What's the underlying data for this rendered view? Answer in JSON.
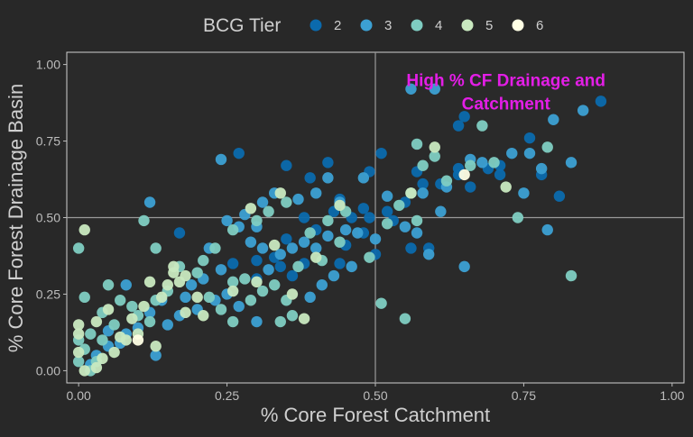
{
  "chart_data": {
    "type": "scatter",
    "xlabel": "% Core Forest Catchment",
    "ylabel": "% Core Forest Drainage Basin",
    "xlim": [
      -0.02,
      1.02
    ],
    "ylim": [
      -0.04,
      1.04
    ],
    "x_ticks": [
      "0.00",
      "0.25",
      "0.50",
      "0.75",
      "1.00"
    ],
    "x_tick_values": [
      0,
      0.25,
      0.5,
      0.75,
      1.0
    ],
    "y_ticks": [
      "0.00",
      "0.25",
      "0.50",
      "0.75",
      "1.00"
    ],
    "y_tick_values": [
      0,
      0.25,
      0.5,
      0.75,
      1.0
    ],
    "grid": false,
    "reference_lines": {
      "x": 0.5,
      "y": 0.5
    },
    "annotation": {
      "lines": [
        "High % CF Drainage and",
        "Catchment"
      ],
      "x": 0.72,
      "y": 0.95,
      "color": "#e31ee6"
    },
    "legend": {
      "title": "BCG Tier",
      "placement": "top"
    },
    "series": [
      {
        "name": "2",
        "color": "#0b6aad",
        "points": [
          [
            0.88,
            0.88
          ],
          [
            0.65,
            0.83
          ],
          [
            0.64,
            0.8
          ],
          [
            0.76,
            0.76
          ],
          [
            0.27,
            0.71
          ],
          [
            0.51,
            0.71
          ],
          [
            0.64,
            0.66
          ],
          [
            0.69,
            0.66
          ],
          [
            0.71,
            0.64
          ],
          [
            0.35,
            0.67
          ],
          [
            0.39,
            0.63
          ],
          [
            0.42,
            0.68
          ],
          [
            0.49,
            0.65
          ],
          [
            0.57,
            0.65
          ],
          [
            0.58,
            0.61
          ],
          [
            0.61,
            0.61
          ],
          [
            0.66,
            0.6
          ],
          [
            0.78,
            0.64
          ],
          [
            0.81,
            0.57
          ],
          [
            0.44,
            0.56
          ],
          [
            0.55,
            0.55
          ],
          [
            0.52,
            0.52
          ],
          [
            0.46,
            0.5
          ],
          [
            0.43,
            0.52
          ],
          [
            0.49,
            0.5
          ],
          [
            0.38,
            0.5
          ],
          [
            0.4,
            0.46
          ],
          [
            0.35,
            0.43
          ],
          [
            0.45,
            0.41
          ],
          [
            0.48,
            0.45
          ],
          [
            0.5,
            0.38
          ],
          [
            0.56,
            0.4
          ],
          [
            0.59,
            0.4
          ],
          [
            0.33,
            0.37
          ],
          [
            0.3,
            0.36
          ],
          [
            0.38,
            0.35
          ],
          [
            0.17,
            0.45
          ],
          [
            0.44,
            0.35
          ],
          [
            0.26,
            0.35
          ],
          [
            0.3,
            0.3
          ],
          [
            0.34,
            0.34
          ],
          [
            0.36,
            0.31
          ],
          [
            0.48,
            0.53
          ],
          [
            0.53,
            0.49
          ],
          [
            0.71,
            0.67
          ],
          [
            0.64,
            0.64
          ]
        ]
      },
      {
        "name": "3",
        "color": "#3ca0d3",
        "points": [
          [
            0.56,
            0.92
          ],
          [
            0.6,
            0.92
          ],
          [
            0.85,
            0.85
          ],
          [
            0.8,
            0.82
          ],
          [
            0.78,
            0.66
          ],
          [
            0.83,
            0.68
          ],
          [
            0.75,
            0.58
          ],
          [
            0.79,
            0.46
          ],
          [
            0.62,
            0.6
          ],
          [
            0.58,
            0.58
          ],
          [
            0.65,
            0.34
          ],
          [
            0.59,
            0.38
          ],
          [
            0.55,
            0.47
          ],
          [
            0.61,
            0.52
          ],
          [
            0.52,
            0.57
          ],
          [
            0.48,
            0.63
          ],
          [
            0.42,
            0.63
          ],
          [
            0.4,
            0.58
          ],
          [
            0.37,
            0.56
          ],
          [
            0.33,
            0.58
          ],
          [
            0.31,
            0.55
          ],
          [
            0.24,
            0.69
          ],
          [
            0.3,
            0.47
          ],
          [
            0.28,
            0.51
          ],
          [
            0.25,
            0.49
          ],
          [
            0.27,
            0.47
          ],
          [
            0.29,
            0.42
          ],
          [
            0.31,
            0.4
          ],
          [
            0.32,
            0.33
          ],
          [
            0.34,
            0.38
          ],
          [
            0.36,
            0.4
          ],
          [
            0.38,
            0.42
          ],
          [
            0.4,
            0.4
          ],
          [
            0.42,
            0.44
          ],
          [
            0.45,
            0.46
          ],
          [
            0.47,
            0.45
          ],
          [
            0.5,
            0.43
          ],
          [
            0.22,
            0.4
          ],
          [
            0.24,
            0.33
          ],
          [
            0.21,
            0.3
          ],
          [
            0.19,
            0.28
          ],
          [
            0.18,
            0.24
          ],
          [
            0.2,
            0.2
          ],
          [
            0.23,
            0.23
          ],
          [
            0.25,
            0.25
          ],
          [
            0.27,
            0.21
          ],
          [
            0.3,
            0.16
          ],
          [
            0.12,
            0.55
          ],
          [
            0.14,
            0.23
          ],
          [
            0.12,
            0.19
          ],
          [
            0.1,
            0.14
          ],
          [
            0.08,
            0.12
          ],
          [
            0.07,
            0.09
          ],
          [
            0.05,
            0.08
          ],
          [
            0.03,
            0.05
          ],
          [
            0.02,
            0.02
          ],
          [
            0.08,
            0.28
          ],
          [
            0.05,
            0.13
          ],
          [
            0.15,
            0.15
          ],
          [
            0.17,
            0.18
          ],
          [
            0.13,
            0.05
          ],
          [
            0.39,
            0.24
          ],
          [
            0.43,
            0.31
          ],
          [
            0.41,
            0.28
          ],
          [
            0.46,
            0.34
          ],
          [
            0.44,
            0.55
          ],
          [
            0.57,
            0.45
          ],
          [
            0.68,
            0.68
          ],
          [
            0.73,
            0.71
          ],
          [
            0.76,
            0.71
          ],
          [
            0.66,
            0.69
          ]
        ]
      },
      {
        "name": "4",
        "color": "#7fcdc2",
        "points": [
          [
            0.57,
            0.74
          ],
          [
            0.68,
            0.8
          ],
          [
            0.6,
            0.7
          ],
          [
            0.58,
            0.67
          ],
          [
            0.66,
            0.67
          ],
          [
            0.79,
            0.73
          ],
          [
            0.74,
            0.5
          ],
          [
            0.83,
            0.31
          ],
          [
            0.56,
            0.58
          ],
          [
            0.52,
            0.48
          ],
          [
            0.51,
            0.22
          ],
          [
            0.55,
            0.17
          ],
          [
            0.57,
            0.49
          ],
          [
            0.45,
            0.52
          ],
          [
            0.42,
            0.49
          ],
          [
            0.35,
            0.55
          ],
          [
            0.32,
            0.52
          ],
          [
            0.3,
            0.49
          ],
          [
            0.26,
            0.46
          ],
          [
            0.23,
            0.4
          ],
          [
            0.21,
            0.36
          ],
          [
            0.2,
            0.32
          ],
          [
            0.22,
            0.24
          ],
          [
            0.24,
            0.2
          ],
          [
            0.26,
            0.16
          ],
          [
            0.29,
            0.23
          ],
          [
            0.34,
            0.16
          ],
          [
            0.36,
            0.18
          ],
          [
            0.35,
            0.23
          ],
          [
            0.37,
            0.34
          ],
          [
            0.33,
            0.28
          ],
          [
            0.31,
            0.26
          ],
          [
            0.28,
            0.3
          ],
          [
            0.26,
            0.29
          ],
          [
            0.17,
            0.34
          ],
          [
            0.15,
            0.26
          ],
          [
            0.13,
            0.23
          ],
          [
            0.12,
            0.16
          ],
          [
            0.1,
            0.18
          ],
          [
            0.09,
            0.21
          ],
          [
            0.07,
            0.23
          ],
          [
            0.04,
            0.19
          ],
          [
            0.02,
            0.12
          ],
          [
            0.01,
            0.07
          ],
          [
            0.0,
            0.1
          ],
          [
            0.0,
            0.03
          ],
          [
            0.01,
            0.24
          ],
          [
            0.0,
            0.4
          ],
          [
            0.11,
            0.49
          ],
          [
            0.13,
            0.4
          ],
          [
            0.05,
            0.28
          ],
          [
            0.06,
            0.15
          ],
          [
            0.04,
            0.1
          ],
          [
            0.03,
            0.03
          ],
          [
            0.02,
            0.0
          ],
          [
            0.41,
            0.36
          ],
          [
            0.44,
            0.42
          ],
          [
            0.39,
            0.45
          ],
          [
            0.49,
            0.37
          ],
          [
            0.54,
            0.54
          ],
          [
            0.62,
            0.62
          ],
          [
            0.7,
            0.68
          ]
        ]
      },
      {
        "name": "5",
        "color": "#c9e9c0",
        "points": [
          [
            0.72,
            0.6
          ],
          [
            0.6,
            0.73
          ],
          [
            0.34,
            0.58
          ],
          [
            0.29,
            0.53
          ],
          [
            0.38,
            0.17
          ],
          [
            0.16,
            0.32
          ],
          [
            0.17,
            0.29
          ],
          [
            0.15,
            0.28
          ],
          [
            0.14,
            0.24
          ],
          [
            0.11,
            0.21
          ],
          [
            0.09,
            0.17
          ],
          [
            0.07,
            0.11
          ],
          [
            0.06,
            0.06
          ],
          [
            0.04,
            0.04
          ],
          [
            0.03,
            0.01
          ],
          [
            0.01,
            0.0
          ],
          [
            0.0,
            0.06
          ],
          [
            0.0,
            0.12
          ],
          [
            0.0,
            0.15
          ],
          [
            0.01,
            0.46
          ],
          [
            0.03,
            0.16
          ],
          [
            0.05,
            0.2
          ],
          [
            0.08,
            0.1
          ],
          [
            0.1,
            0.12
          ],
          [
            0.13,
            0.08
          ],
          [
            0.18,
            0.19
          ],
          [
            0.21,
            0.18
          ],
          [
            0.2,
            0.24
          ],
          [
            0.18,
            0.31
          ],
          [
            0.16,
            0.34
          ],
          [
            0.12,
            0.29
          ],
          [
            0.26,
            0.26
          ],
          [
            0.3,
            0.29
          ],
          [
            0.33,
            0.41
          ],
          [
            0.36,
            0.25
          ],
          [
            0.4,
            0.37
          ],
          [
            0.44,
            0.54
          ],
          [
            0.56,
            0.58
          ]
        ]
      },
      {
        "name": "6",
        "color": "#ffffe5",
        "points": [
          [
            0.65,
            0.64
          ],
          [
            0.1,
            0.1
          ]
        ]
      }
    ]
  }
}
